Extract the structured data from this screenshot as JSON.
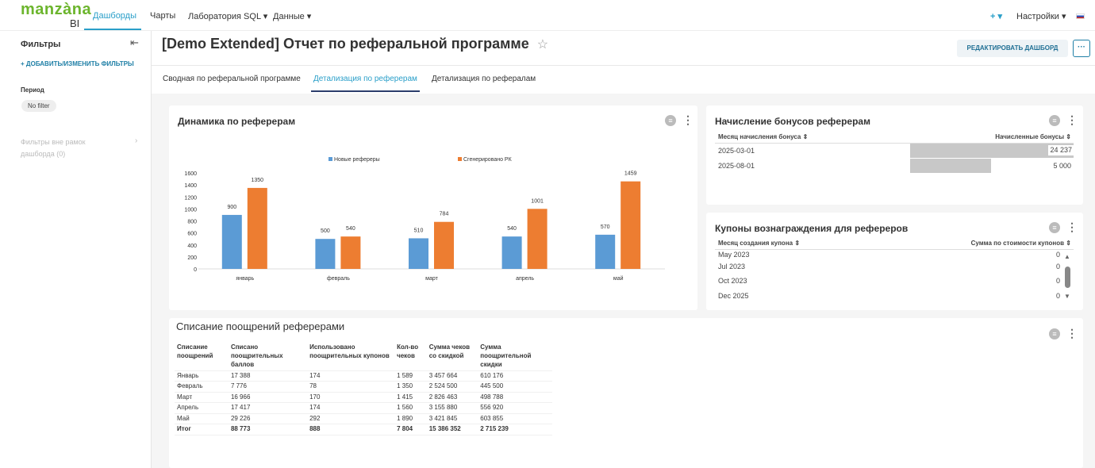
{
  "logo": {
    "name": "manzàna",
    "sub": "BI"
  },
  "nav": {
    "items": [
      "Дашборды",
      "Чарты",
      "Лаборатория SQL ▾",
      "Данные ▾"
    ],
    "plus": "+ ▾",
    "settings": "Настройки ▾"
  },
  "sidebar": {
    "title": "Фильтры",
    "add": "+  ДОБАВИТЬ/ИЗМЕНИТЬ ФИЛЬТРЫ",
    "period_label": "Период",
    "period_value": "No filter",
    "outside": "Фильтры вне рамок дашборда (0)"
  },
  "header": {
    "title": "[Demo Extended] Отчет по реферальной программе",
    "edit": "РЕДАКТИРОВАТЬ ДАШБОРД",
    "more": "···"
  },
  "tabs": [
    "Сводная по реферальной программе",
    "Детализация по рефeрерам",
    "Детализация по рефералам"
  ],
  "chart_card": {
    "title": "Динамика по рефeрерам"
  },
  "chart_data": {
    "type": "bar",
    "title": "Динамика по рефeрерам",
    "categories": [
      "январь",
      "февраль",
      "март",
      "апрель",
      "май"
    ],
    "series": [
      {
        "name": "Новые рефереры",
        "color": "#5b9bd5",
        "values": [
          900,
          500,
          510,
          540,
          570
        ]
      },
      {
        "name": "Сгенерировано РК",
        "color": "#ed7d31",
        "values": [
          1350,
          540,
          784,
          1001,
          1459
        ]
      }
    ],
    "yticks": [
      0,
      200,
      400,
      600,
      800,
      1000,
      1200,
      1400,
      1600
    ],
    "ylim": [
      0,
      1600
    ],
    "legend": "top-center"
  },
  "bonus": {
    "title": "Начисление бонусов рефeрерам",
    "cols": [
      "Месяц начисления бонуса",
      "Начисленные бонусы"
    ],
    "rows": [
      {
        "month": "2025-03-01",
        "value": "24 237",
        "frac": 1.0
      },
      {
        "month": "2025-08-01",
        "value": "5 000",
        "frac": 0.5
      }
    ]
  },
  "coupons": {
    "title": "Купоны вознаграждения для рефeреров",
    "cols": [
      "Месяц создания купона",
      "Сумма по стоимости купонов"
    ],
    "rows": [
      {
        "month": "May 2023",
        "value": "0"
      },
      {
        "month": "Jul 2023",
        "value": "0"
      },
      {
        "month": "Oct 2023",
        "value": "0"
      },
      {
        "month": "Dec 2025",
        "value": "0"
      }
    ]
  },
  "writeoff": {
    "title": "Списание поощрений рефeрерами",
    "cols": [
      "Списание поощрений",
      "Списано поощрительных баллов",
      "Использовано поощрительных купонов",
      "Кол-во чеков",
      "Сумма чеков со скидкой",
      "Сумма поощрительной скидки"
    ],
    "rows": [
      [
        "Январь",
        "17 388",
        "174",
        "1 589",
        "3 457 664",
        "610 176"
      ],
      [
        "Февраль",
        "7 776",
        "78",
        "1 350",
        "2 524 500",
        "445 500"
      ],
      [
        "Март",
        "16 966",
        "170",
        "1 415",
        "2 826 463",
        "498 788"
      ],
      [
        "Апрель",
        "17 417",
        "174",
        "1 560",
        "3 155 880",
        "556 920"
      ],
      [
        "Май",
        "29 226",
        "292",
        "1 890",
        "3 421 845",
        "603 855"
      ],
      [
        "Итог",
        "88 773",
        "888",
        "7 804",
        "15 386 352",
        "2 715 239"
      ]
    ]
  }
}
